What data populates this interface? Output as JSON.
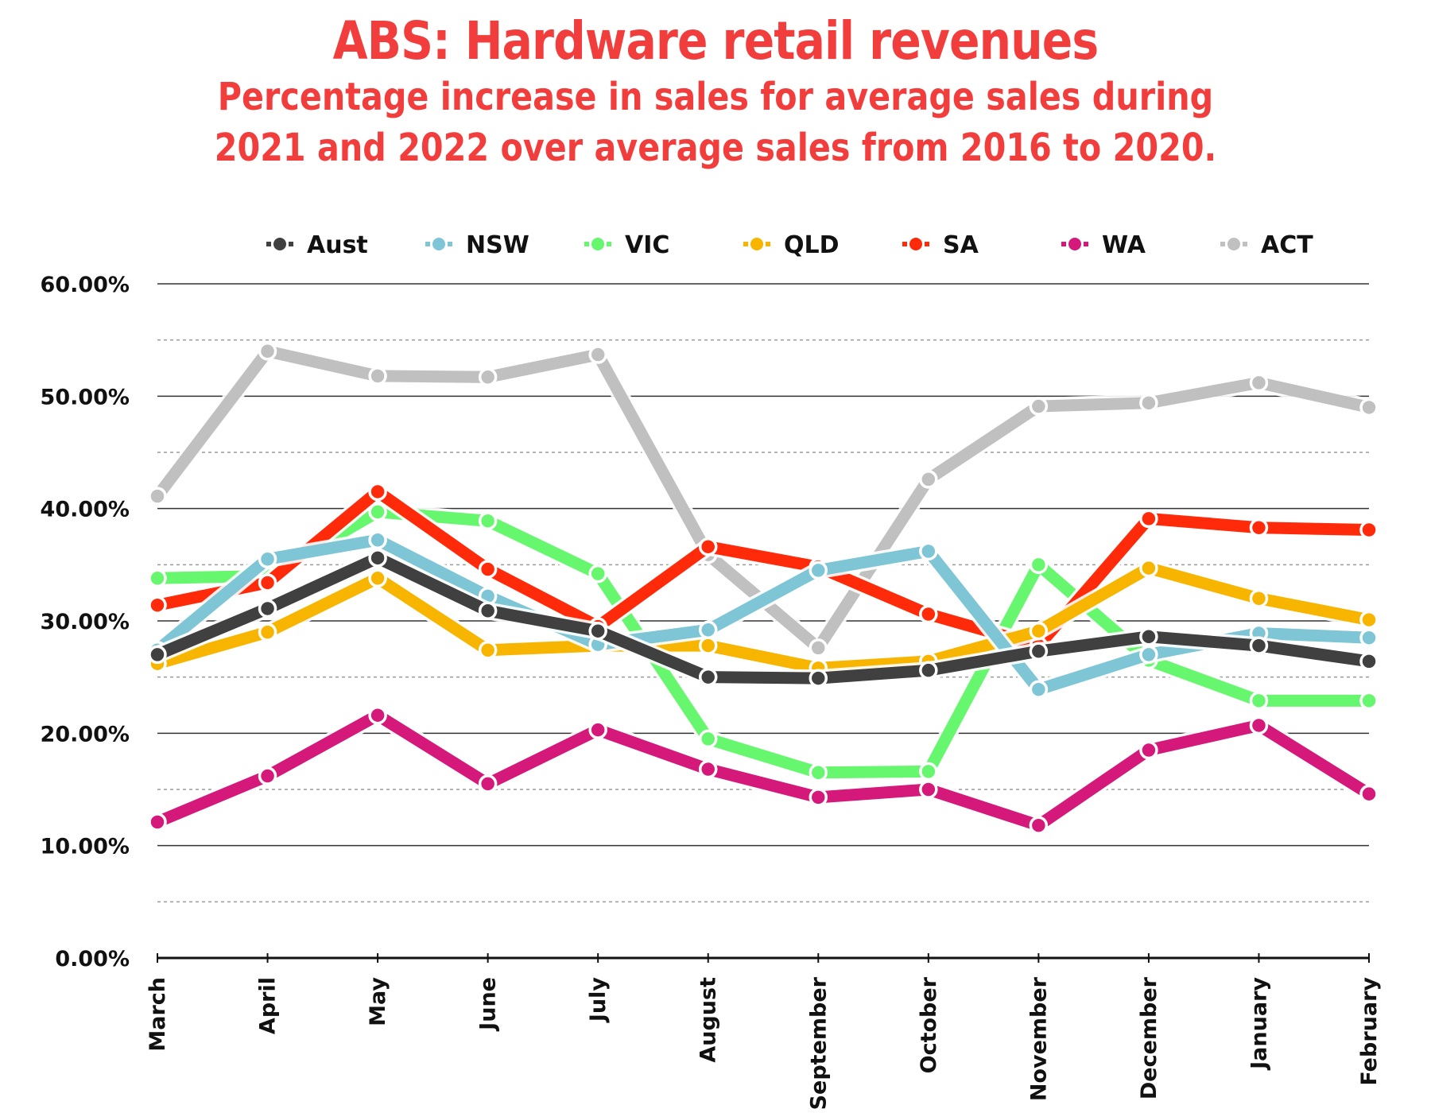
{
  "chart_data": {
    "type": "line",
    "title": "ABS: Hardware retail revenues",
    "subtitle_lines": [
      "Percentage increase in sales for average sales during",
      "2021 and 2022 over average sales from 2016 to 2020."
    ],
    "xlabel": "",
    "ylabel": "",
    "categories": [
      "March",
      "April",
      "May",
      "June",
      "July",
      "August",
      "September",
      "October",
      "November",
      "December",
      "January",
      "February"
    ],
    "ylim": [
      0,
      60
    ],
    "yticks": [
      0,
      10,
      20,
      30,
      40,
      50,
      60
    ],
    "ytick_labels": [
      "0.00%",
      "10.00%",
      "20.00%",
      "30.00%",
      "40.00%",
      "50.00%",
      "60.00%"
    ],
    "minor_grid": [
      5,
      15,
      25,
      35,
      45,
      55
    ],
    "grid": true,
    "legend_position": "top",
    "series": [
      {
        "name": "ACT",
        "color": "#c0c0c0",
        "values": [
          41.1,
          54.0,
          51.8,
          51.7,
          53.7,
          35.9,
          27.6,
          42.6,
          49.1,
          49.4,
          51.2,
          49.0
        ]
      },
      {
        "name": "WA",
        "color": "#d4197a",
        "values": [
          12.1,
          16.2,
          21.6,
          15.5,
          20.3,
          16.8,
          14.3,
          15.0,
          11.8,
          18.5,
          20.7,
          14.6
        ]
      },
      {
        "name": "VIC",
        "color": "#66f76e",
        "values": [
          33.8,
          34.0,
          39.7,
          38.9,
          34.2,
          19.5,
          16.5,
          16.6,
          35.0,
          26.5,
          22.9,
          22.9
        ]
      },
      {
        "name": "SA",
        "color": "#ff2a0a",
        "values": [
          31.4,
          33.4,
          41.5,
          34.6,
          29.5,
          36.6,
          34.8,
          30.6,
          27.8,
          39.1,
          38.3,
          38.1
        ]
      },
      {
        "name": "QLD",
        "color": "#f7b500",
        "values": [
          26.2,
          29.0,
          33.8,
          27.4,
          27.8,
          27.8,
          25.8,
          26.4,
          29.1,
          34.7,
          32.0,
          30.1
        ]
      },
      {
        "name": "NSW",
        "color": "#7ec6d6",
        "values": [
          27.4,
          35.5,
          37.2,
          32.2,
          27.9,
          29.2,
          34.5,
          36.2,
          23.9,
          27.0,
          28.9,
          28.5
        ]
      },
      {
        "name": "Aust",
        "color": "#404040",
        "values": [
          27.0,
          31.1,
          35.6,
          30.9,
          29.1,
          25.0,
          24.9,
          25.6,
          27.3,
          28.6,
          27.8,
          26.4
        ]
      }
    ],
    "legend_order": [
      "Aust",
      "NSW",
      "VIC",
      "QLD",
      "SA",
      "WA",
      "ACT"
    ]
  }
}
